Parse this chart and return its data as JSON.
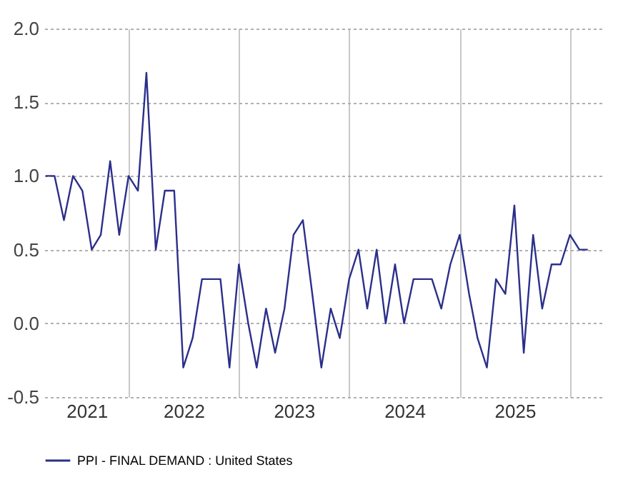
{
  "chart_data": {
    "type": "line",
    "x": [
      "2021-04",
      "2021-05",
      "2021-06",
      "2021-07",
      "2021-08",
      "2021-09",
      "2021-10",
      "2021-11",
      "2021-12",
      "2022-01",
      "2022-02",
      "2022-03",
      "2022-04",
      "2022-05",
      "2022-06",
      "2022-07",
      "2022-08",
      "2022-09",
      "2022-10",
      "2022-11",
      "2022-12",
      "2023-01",
      "2023-02",
      "2023-03",
      "2023-04",
      "2023-05",
      "2023-06",
      "2023-07",
      "2023-08",
      "2023-09",
      "2023-10",
      "2023-11",
      "2023-12",
      "2024-01",
      "2024-02",
      "2024-03",
      "2024-04",
      "2024-05",
      "2024-06",
      "2024-07",
      "2024-08",
      "2024-09",
      "2024-10",
      "2024-11",
      "2024-12",
      "2025-01",
      "2025-02",
      "2025-03",
      "2025-04",
      "2025-05",
      "2025-06",
      "2025-07",
      "2025-08",
      "2025-09",
      "2025-10",
      "2025-11",
      "2025-12",
      "2026-01",
      "2026-02",
      "2026-03"
    ],
    "series": [
      {
        "name": "PPI - FINAL DEMAND : United States",
        "color": "#2b2f8a",
        "values": [
          1.0,
          1.0,
          0.7,
          1.0,
          0.9,
          0.5,
          0.6,
          1.1,
          0.6,
          1.0,
          0.9,
          1.7,
          0.5,
          0.9,
          0.9,
          -0.3,
          -0.1,
          0.3,
          0.3,
          0.3,
          -0.3,
          0.4,
          0.0,
          -0.3,
          0.1,
          -0.2,
          0.1,
          0.6,
          0.7,
          0.2,
          -0.3,
          0.1,
          -0.1,
          0.3,
          0.5,
          0.1,
          0.5,
          0.0,
          0.4,
          0.0,
          0.3,
          0.3,
          0.3,
          0.1,
          0.4,
          0.6,
          0.2,
          -0.1,
          -0.3,
          0.3,
          0.2,
          0.8,
          -0.2,
          0.6,
          0.1,
          0.4,
          0.4,
          0.6,
          0.5,
          0.5
        ]
      }
    ],
    "xlim": [
      "2021-03-28",
      "2026-04-25"
    ],
    "xticks": [
      {
        "value": "2021-08-15",
        "label": "2021"
      },
      {
        "value": "2022-01-01",
        "label": null
      },
      {
        "value": "2022-07-02",
        "label": "2022"
      },
      {
        "value": "2023-01-01",
        "label": null
      },
      {
        "value": "2023-07-02",
        "label": "2023"
      },
      {
        "value": "2024-01-01",
        "label": null
      },
      {
        "value": "2024-07-02",
        "label": "2024"
      },
      {
        "value": "2025-01-01",
        "label": null
      },
      {
        "value": "2025-07-02",
        "label": "2025"
      },
      {
        "value": "2026-01-01",
        "label": null
      }
    ],
    "ylim": [
      -0.5,
      2.0
    ],
    "yticks": [
      {
        "value": -0.5,
        "label": "-0.5"
      },
      {
        "value": 0,
        "label": "0.0"
      },
      {
        "value": 0.5,
        "label": "0.5"
      },
      {
        "value": 1,
        "label": "1.0"
      },
      {
        "value": 1.5,
        "label": "1.5"
      },
      {
        "value": 2,
        "label": "2.0"
      }
    ],
    "grid": true,
    "legend": "bottom left",
    "line_style": "solid",
    "marker": "none"
  }
}
